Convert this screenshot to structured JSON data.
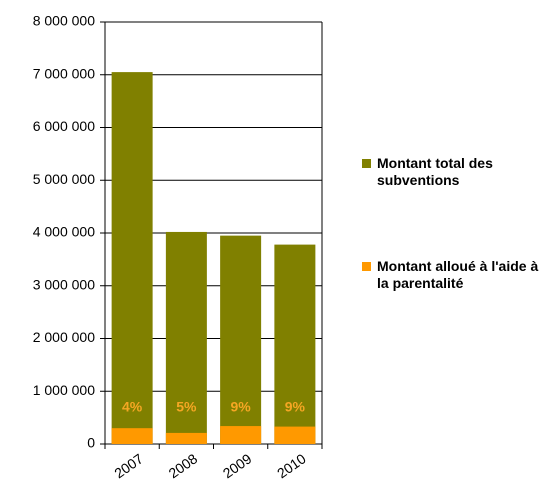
{
  "chart_data": {
    "type": "bar",
    "categories": [
      "2007",
      "2008",
      "2009",
      "2010"
    ],
    "series": [
      {
        "name": "Montant total des subventions",
        "color": "#808000",
        "values": [
          7050000,
          4020000,
          3950000,
          3780000
        ]
      },
      {
        "name": "Montant alloué à l'aide à la parentalité",
        "color": "#ff9900",
        "values": [
          300000,
          210000,
          340000,
          330000
        ]
      }
    ],
    "share_labels": [
      "4%",
      "5%",
      "9%",
      "9%"
    ],
    "ylim": [
      0,
      8000000
    ],
    "yticks": [
      {
        "value": 0,
        "label": "0"
      },
      {
        "value": 1000000,
        "label": "1 000 000"
      },
      {
        "value": 2000000,
        "label": "2 000 000"
      },
      {
        "value": 3000000,
        "label": "3 000 000"
      },
      {
        "value": 4000000,
        "label": "4 000 000"
      },
      {
        "value": 5000000,
        "label": "5 000 000"
      },
      {
        "value": 6000000,
        "label": "6 000 000"
      },
      {
        "value": 7000000,
        "label": "7 000 000"
      },
      {
        "value": 8000000,
        "label": "8 000 000"
      }
    ],
    "grid": true,
    "legend": "right"
  }
}
